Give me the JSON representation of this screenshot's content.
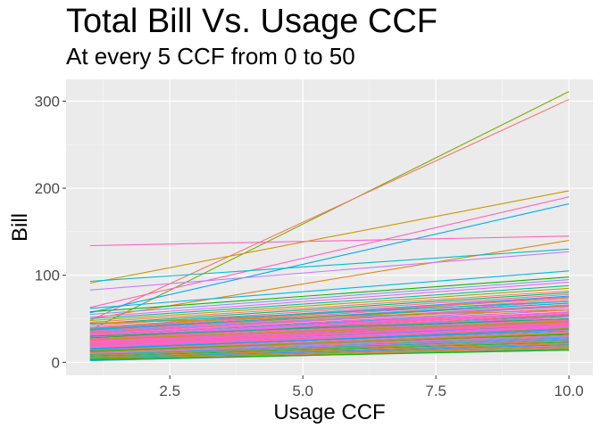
{
  "chart_data": {
    "type": "line",
    "title": "Total Bill Vs. Usage CCF",
    "subtitle": "At every 5 CCF from 0 to 50",
    "xlabel": "Usage CCF",
    "ylabel": "Bill",
    "xlim": [
      0.55,
      10.45
    ],
    "ylim": [
      -15,
      325
    ],
    "xticks": [
      2.5,
      5.0,
      7.5,
      10.0
    ],
    "xtick_labels": [
      "2.5",
      "5.0",
      "7.5",
      "10.0"
    ],
    "yticks": [
      0,
      100,
      200,
      300
    ],
    "ytick_labels": [
      "0",
      "100",
      "200",
      "300"
    ],
    "grid": true,
    "legend": "none",
    "series": [
      {
        "x": [
          1,
          10
        ],
        "y": [
          37,
          311
        ],
        "color": "#7CAE00"
      },
      {
        "x": [
          1,
          10
        ],
        "y": [
          48,
          302
        ],
        "color": "#F8766D"
      },
      {
        "x": [
          1,
          10
        ],
        "y": [
          91,
          197
        ],
        "color": "#CD9600"
      },
      {
        "x": [
          1,
          10
        ],
        "y": [
          63,
          190
        ],
        "color": "#FF61C3"
      },
      {
        "x": [
          1,
          10
        ],
        "y": [
          57,
          182
        ],
        "color": "#00A9FF"
      },
      {
        "x": [
          1,
          10
        ],
        "y": [
          134,
          145
        ],
        "color": "#FF61C3"
      },
      {
        "x": [
          1,
          10
        ],
        "y": [
          50,
          140
        ],
        "color": "#E68613"
      },
      {
        "x": [
          1,
          10
        ],
        "y": [
          93,
          130
        ],
        "color": "#00BFC4"
      },
      {
        "x": [
          1,
          10
        ],
        "y": [
          83,
          127
        ],
        "color": "#C77CFF"
      },
      {
        "x": [
          1,
          10
        ],
        "y": [
          62,
          105
        ],
        "color": "#00B8E7"
      },
      {
        "x": [
          1,
          10
        ],
        "y": [
          58,
          98
        ],
        "color": "#0CB702"
      },
      {
        "x": [
          1,
          10
        ],
        "y": [
          55,
          95
        ],
        "color": "#8494FF"
      },
      {
        "x": [
          1,
          10
        ],
        "y": [
          52,
          92
        ],
        "color": "#ED68ED"
      },
      {
        "x": [
          1,
          10
        ],
        "y": [
          50,
          88
        ],
        "color": "#00C19A"
      },
      {
        "x": [
          1,
          10
        ],
        "y": [
          48,
          85
        ],
        "color": "#ABA300"
      },
      {
        "x": [
          1,
          10
        ],
        "y": [
          46,
          82
        ],
        "color": "#F8766D"
      },
      {
        "x": [
          1,
          10
        ],
        "y": [
          44,
          80
        ],
        "color": "#00BE67"
      },
      {
        "x": [
          1,
          10
        ],
        "y": [
          42,
          78
        ],
        "color": "#FF6C91"
      },
      {
        "x": [
          1,
          10
        ],
        "y": [
          40,
          76
        ],
        "color": "#00A9FF"
      },
      {
        "x": [
          1,
          10
        ],
        "y": [
          39,
          74
        ],
        "color": "#CD9600"
      },
      {
        "x": [
          1,
          10
        ],
        "y": [
          38,
          72
        ],
        "color": "#FF61C3"
      },
      {
        "x": [
          1,
          10
        ],
        "y": [
          37,
          70
        ],
        "color": "#00BFC4"
      },
      {
        "x": [
          1,
          10
        ],
        "y": [
          36,
          68
        ],
        "color": "#7CAE00"
      },
      {
        "x": [
          1,
          10
        ],
        "y": [
          35,
          66
        ],
        "color": "#FF61C3"
      },
      {
        "x": [
          1,
          10
        ],
        "y": [
          34,
          65
        ],
        "color": "#E68613"
      },
      {
        "x": [
          1,
          10
        ],
        "y": [
          33,
          64
        ],
        "color": "#F8766D"
      },
      {
        "x": [
          1,
          10
        ],
        "y": [
          32,
          62
        ],
        "color": "#ED68ED"
      },
      {
        "x": [
          1,
          10
        ],
        "y": [
          31,
          60
        ],
        "color": "#00B8E7"
      },
      {
        "x": [
          1,
          10
        ],
        "y": [
          30,
          58
        ],
        "color": "#FF6C91"
      },
      {
        "x": [
          1,
          10
        ],
        "y": [
          29,
          57
        ],
        "color": "#C77CFF"
      },
      {
        "x": [
          1,
          10
        ],
        "y": [
          28,
          56
        ],
        "color": "#FF61C3"
      },
      {
        "x": [
          1,
          10
        ],
        "y": [
          28,
          54
        ],
        "color": "#0CB702"
      },
      {
        "x": [
          1,
          10
        ],
        "y": [
          27,
          53
        ],
        "color": "#8494FF"
      },
      {
        "x": [
          1,
          10
        ],
        "y": [
          26,
          52
        ],
        "color": "#FF61C3"
      },
      {
        "x": [
          1,
          10
        ],
        "y": [
          25,
          50
        ],
        "color": "#00C19A"
      },
      {
        "x": [
          1,
          10
        ],
        "y": [
          25,
          49
        ],
        "color": "#F8766D"
      },
      {
        "x": [
          1,
          10
        ],
        "y": [
          24,
          48
        ],
        "color": "#ABA300"
      },
      {
        "x": [
          1,
          10
        ],
        "y": [
          23,
          47
        ],
        "color": "#FF61C3"
      },
      {
        "x": [
          1,
          10
        ],
        "y": [
          22,
          46
        ],
        "color": "#00BE67"
      },
      {
        "x": [
          1,
          10
        ],
        "y": [
          22,
          45
        ],
        "color": "#ED68ED"
      },
      {
        "x": [
          1,
          10
        ],
        "y": [
          21,
          44
        ],
        "color": "#E68613"
      },
      {
        "x": [
          1,
          10
        ],
        "y": [
          20,
          43
        ],
        "color": "#FF6C91"
      },
      {
        "x": [
          1,
          10
        ],
        "y": [
          20,
          42
        ],
        "color": "#00A9FF"
      },
      {
        "x": [
          1,
          10
        ],
        "y": [
          19,
          41
        ],
        "color": "#FF61C3"
      },
      {
        "x": [
          1,
          10
        ],
        "y": [
          18,
          40
        ],
        "color": "#C77CFF"
      },
      {
        "x": [
          1,
          10
        ],
        "y": [
          18,
          39
        ],
        "color": "#7CAE00"
      },
      {
        "x": [
          1,
          10
        ],
        "y": [
          17,
          38
        ],
        "color": "#F8766D"
      },
      {
        "x": [
          1,
          10
        ],
        "y": [
          16,
          37
        ],
        "color": "#FF61C3"
      },
      {
        "x": [
          1,
          10
        ],
        "y": [
          16,
          36
        ],
        "color": "#00BFC4"
      },
      {
        "x": [
          1,
          10
        ],
        "y": [
          15,
          35
        ],
        "color": "#ED68ED"
      },
      {
        "x": [
          1,
          10
        ],
        "y": [
          14,
          34
        ],
        "color": "#CD9600"
      },
      {
        "x": [
          1,
          10
        ],
        "y": [
          14,
          33
        ],
        "color": "#FF6C91"
      },
      {
        "x": [
          1,
          10
        ],
        "y": [
          13,
          32
        ],
        "color": "#0CB702"
      },
      {
        "x": [
          1,
          10
        ],
        "y": [
          12,
          31
        ],
        "color": "#FF61C3"
      },
      {
        "x": [
          1,
          10
        ],
        "y": [
          12,
          30
        ],
        "color": "#8494FF"
      },
      {
        "x": [
          1,
          10
        ],
        "y": [
          11,
          29
        ],
        "color": "#F8766D"
      },
      {
        "x": [
          1,
          10
        ],
        "y": [
          10,
          28
        ],
        "color": "#00B8E7"
      },
      {
        "x": [
          1,
          10
        ],
        "y": [
          10,
          27
        ],
        "color": "#ED68ED"
      },
      {
        "x": [
          1,
          10
        ],
        "y": [
          9,
          26
        ],
        "color": "#00C19A"
      },
      {
        "x": [
          1,
          10
        ],
        "y": [
          8,
          25
        ],
        "color": "#FF61C3"
      },
      {
        "x": [
          1,
          10
        ],
        "y": [
          8,
          24
        ],
        "color": "#ABA300"
      },
      {
        "x": [
          1,
          10
        ],
        "y": [
          7,
          23
        ],
        "color": "#00BE67"
      },
      {
        "x": [
          1,
          10
        ],
        "y": [
          6,
          22
        ],
        "color": "#FF6C91"
      },
      {
        "x": [
          1,
          10
        ],
        "y": [
          6,
          21
        ],
        "color": "#E68613"
      },
      {
        "x": [
          1,
          10
        ],
        "y": [
          5,
          20
        ],
        "color": "#00A9FF"
      },
      {
        "x": [
          1,
          10
        ],
        "y": [
          4,
          19
        ],
        "color": "#C77CFF"
      },
      {
        "x": [
          1,
          10
        ],
        "y": [
          4,
          18
        ],
        "color": "#7CAE00"
      },
      {
        "x": [
          1,
          10
        ],
        "y": [
          3,
          17
        ],
        "color": "#F8766D"
      },
      {
        "x": [
          1,
          10
        ],
        "y": [
          2,
          16
        ],
        "color": "#CD9600"
      },
      {
        "x": [
          1,
          10
        ],
        "y": [
          2,
          15
        ],
        "color": "#00BFC4"
      },
      {
        "x": [
          1,
          10
        ],
        "y": [
          3,
          14
        ],
        "color": "#0CB702"
      },
      {
        "x": [
          1,
          10
        ],
        "y": [
          40,
          75
        ],
        "color": "#FF61C3"
      },
      {
        "x": [
          1,
          10
        ],
        "y": [
          36,
          70
        ],
        "color": "#FF61C3"
      },
      {
        "x": [
          1,
          10
        ],
        "y": [
          33,
          66
        ],
        "color": "#FF61C3"
      },
      {
        "x": [
          1,
          10
        ],
        "y": [
          31,
          62
        ],
        "color": "#FF61C3"
      },
      {
        "x": [
          1,
          10
        ],
        "y": [
          29,
          60
        ],
        "color": "#ED68ED"
      },
      {
        "x": [
          1,
          10
        ],
        "y": [
          27,
          58
        ],
        "color": "#FF61C3"
      },
      {
        "x": [
          1,
          10
        ],
        "y": [
          26,
          55
        ],
        "color": "#FF6C91"
      },
      {
        "x": [
          1,
          10
        ],
        "y": [
          24,
          52
        ],
        "color": "#FF61C3"
      },
      {
        "x": [
          1,
          10
        ],
        "y": [
          23,
          50
        ],
        "color": "#ED68ED"
      },
      {
        "x": [
          1,
          10
        ],
        "y": [
          22,
          48
        ],
        "color": "#FF61C3"
      },
      {
        "x": [
          1,
          10
        ],
        "y": [
          21,
          46
        ],
        "color": "#FF61C3"
      },
      {
        "x": [
          1,
          10
        ],
        "y": [
          20,
          45
        ],
        "color": "#FF6C91"
      },
      {
        "x": [
          1,
          10
        ],
        "y": [
          19,
          44
        ],
        "color": "#FF61C3"
      },
      {
        "x": [
          1,
          10
        ],
        "y": [
          18,
          42
        ],
        "color": "#ED68ED"
      },
      {
        "x": [
          1,
          10
        ],
        "y": [
          17,
          40
        ],
        "color": "#FF61C3"
      },
      {
        "x": [
          1,
          10
        ],
        "y": [
          44,
          70
        ],
        "color": "#00BFC4"
      },
      {
        "x": [
          1,
          10
        ],
        "y": [
          38,
          68
        ],
        "color": "#00B8E7"
      },
      {
        "x": [
          1,
          10
        ],
        "y": [
          35,
          64
        ],
        "color": "#8494FF"
      },
      {
        "x": [
          1,
          10
        ],
        "y": [
          45,
          60
        ],
        "color": "#CD9600"
      },
      {
        "x": [
          1,
          10
        ],
        "y": [
          30,
          50
        ],
        "color": "#00BE67"
      },
      {
        "x": [
          1,
          10
        ],
        "y": [
          26,
          47
        ],
        "color": "#ABA300"
      },
      {
        "x": [
          1,
          10
        ],
        "y": [
          15,
          38
        ],
        "color": "#00A9FF"
      },
      {
        "x": [
          1,
          10
        ],
        "y": [
          12,
          33
        ],
        "color": "#7CAE00"
      }
    ]
  }
}
